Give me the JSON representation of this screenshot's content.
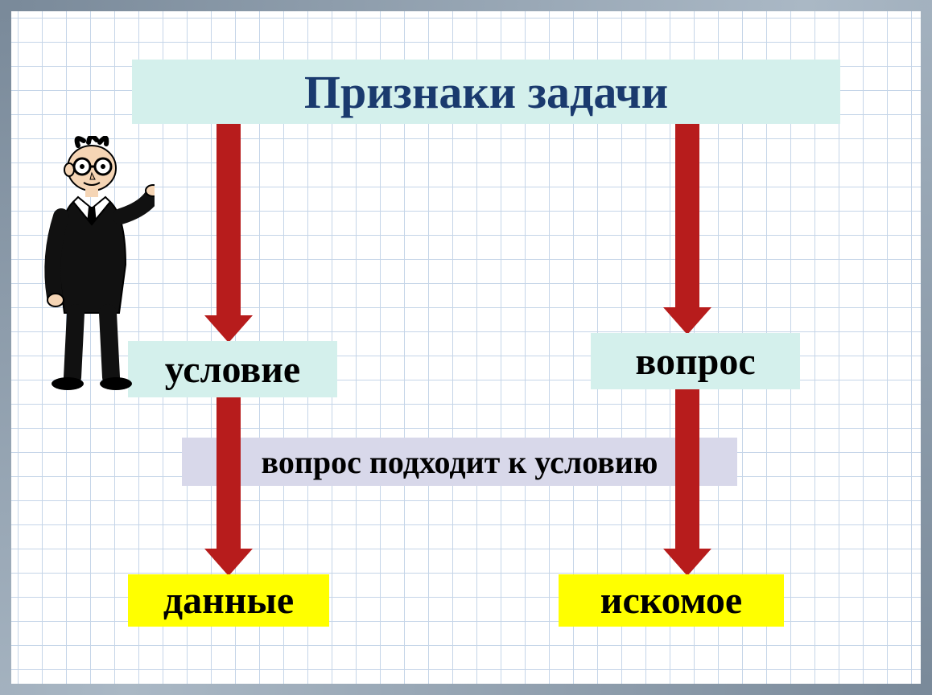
{
  "diagram": {
    "type": "flowchart",
    "title": {
      "text": "Признаки задачи",
      "bg_color": "#d4f0ec",
      "text_color": "#1a3a6e",
      "font_size": 58,
      "font_weight": "bold"
    },
    "boxes": {
      "condition": {
        "text": "условие",
        "bg_color": "#d4f0ec",
        "text_color": "#000000",
        "font_size": 48
      },
      "question": {
        "text": "вопрос",
        "bg_color": "#d4f0ec",
        "text_color": "#000000",
        "font_size": 48
      },
      "middle": {
        "text": "вопрос подходит к условию",
        "bg_color": "#d8d8ea",
        "text_color": "#000000",
        "font_size": 40
      },
      "data": {
        "text": "данные",
        "bg_color": "#ffff00",
        "text_color": "#000000",
        "font_size": 48
      },
      "sought": {
        "text": "искомое",
        "bg_color": "#ffff00",
        "text_color": "#000000",
        "font_size": 48
      }
    },
    "arrows": {
      "color": "#b71c1c",
      "shaft_width": 30,
      "head_width": 60
    },
    "background": {
      "board_color": "#ffffff",
      "grid_color": "#c5d5e8",
      "grid_size": 30,
      "frame_color": "#8a9aaa"
    },
    "character": {
      "present": true,
      "description": "cartoon man in black suit with glasses pointing right"
    }
  }
}
